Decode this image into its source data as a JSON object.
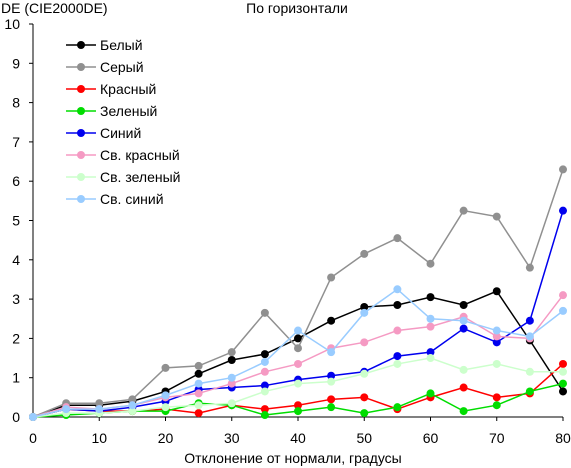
{
  "chart_data": {
    "type": "line",
    "title": "По горизонтали",
    "ylabel": "DE (CIE2000DE)",
    "xlabel": "Отклонение от нормали, градусы",
    "x": [
      0,
      5,
      10,
      15,
      20,
      25,
      30,
      35,
      40,
      45,
      50,
      55,
      60,
      65,
      70,
      75,
      80
    ],
    "xlim": [
      0,
      80
    ],
    "ylim": [
      0,
      10
    ],
    "x_ticks": [
      "0",
      "10",
      "20",
      "30",
      "40",
      "50",
      "60",
      "70",
      "80"
    ],
    "y_ticks": [
      "0",
      "1",
      "2",
      "3",
      "4",
      "5",
      "6",
      "7",
      "8",
      "9",
      "10"
    ],
    "grid": false,
    "legend": "top-left",
    "series": [
      {
        "name": "Белый",
        "color": "#000000",
        "values": [
          0,
          0.3,
          0.3,
          0.4,
          0.65,
          1.1,
          1.45,
          1.6,
          2.0,
          2.45,
          2.8,
          2.85,
          3.05,
          2.85,
          3.2,
          1.95,
          0.65
        ]
      },
      {
        "name": "Серый",
        "color": "#909090",
        "values": [
          0,
          0.35,
          0.35,
          0.45,
          1.25,
          1.3,
          1.65,
          2.65,
          1.75,
          3.55,
          4.15,
          4.55,
          3.9,
          5.25,
          5.1,
          3.8,
          6.3
        ]
      },
      {
        "name": "Красный",
        "color": "#ff0000",
        "values": [
          0,
          0.2,
          0.15,
          0.15,
          0.2,
          0.1,
          0.3,
          0.2,
          0.3,
          0.45,
          0.5,
          0.2,
          0.5,
          0.75,
          0.5,
          0.6,
          1.35
        ]
      },
      {
        "name": "Зеленый",
        "color": "#00dd00",
        "values": [
          0,
          0.05,
          0.1,
          0.15,
          0.15,
          0.35,
          0.3,
          0.05,
          0.15,
          0.25,
          0.1,
          0.25,
          0.6,
          0.15,
          0.3,
          0.65,
          0.85
        ]
      },
      {
        "name": "Синий",
        "color": "#0000ee",
        "values": [
          0,
          0.2,
          0.15,
          0.25,
          0.4,
          0.7,
          0.75,
          0.8,
          0.95,
          1.05,
          1.15,
          1.55,
          1.65,
          2.25,
          1.9,
          2.45,
          5.25
        ]
      },
      {
        "name": "Св. красный",
        "color": "#f59ac3",
        "values": [
          0,
          0.25,
          0.2,
          0.3,
          0.5,
          0.6,
          0.85,
          1.15,
          1.35,
          1.75,
          1.9,
          2.2,
          2.3,
          2.55,
          2.05,
          2.0,
          3.1
        ]
      },
      {
        "name": "Св. зеленый",
        "color": "#ccffcc",
        "values": [
          0,
          0.1,
          0.1,
          0.15,
          0.25,
          0.3,
          0.35,
          0.65,
          0.85,
          0.9,
          1.1,
          1.35,
          1.5,
          1.2,
          1.35,
          1.15,
          1.15
        ]
      },
      {
        "name": "Св. синий",
        "color": "#99ccff",
        "values": [
          0,
          0.2,
          0.2,
          0.3,
          0.55,
          0.85,
          1.0,
          1.4,
          2.2,
          1.65,
          2.65,
          3.25,
          2.5,
          2.45,
          2.2,
          2.05,
          2.7
        ]
      }
    ]
  }
}
